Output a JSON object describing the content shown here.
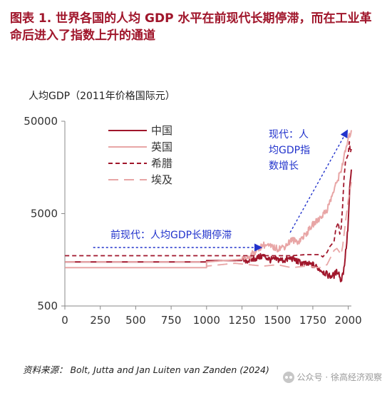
{
  "header": {
    "title": "图表 1.  世界各国的人均 GDP 水平在前现代长期停滞，而在工业革命后进入了指数上升的通道"
  },
  "footer": {
    "source": "资料来源： Bolt, Jutta and Jan Luiten van Zanden (2024)",
    "watermark": "公众号 · 徐高经济观察"
  },
  "chart_data": {
    "type": "line",
    "title": "",
    "ylabel": "人均GDP（2011年价格国际元）",
    "xlabel": "",
    "yscale": "log",
    "ylim": [
      500,
      50000
    ],
    "xlim": [
      0,
      2022
    ],
    "x_ticks": [
      "0",
      "250",
      "500",
      "750",
      "1000",
      "1250",
      "1500",
      "1750",
      "2000"
    ],
    "y_ticks": [
      "500",
      "5000",
      "50000"
    ],
    "grid": false,
    "legend_position": "top-left",
    "colors": {
      "china": "#a0162b",
      "uk": "#e8a6a6",
      "greece": "#a0162b",
      "egypt": "#e8a6a6",
      "annotation": "#2233cc"
    },
    "annotations": [
      {
        "text_lines": [
          "前现代：人均GDP长期停滞"
        ]
      },
      {
        "text_lines": [
          "现代：人",
          "均GDP指",
          "数增长"
        ]
      }
    ],
    "series": [
      {
        "name": "中国",
        "style": "solid",
        "color_key": "china",
        "x": [
          1,
          1000,
          1000,
          1200,
          1300,
          1400,
          1450,
          1500,
          1550,
          1600,
          1650,
          1700,
          1750,
          1800,
          1850,
          1870,
          1900,
          1913,
          1930,
          1950,
          1960,
          1965,
          1978,
          1990,
          2000,
          2010,
          2022
        ],
        "y": [
          1500,
          1500,
          1550,
          1550,
          1560,
          1750,
          1580,
          1600,
          1560,
          1650,
          1500,
          1420,
          1400,
          1250,
          1100,
          1050,
          1080,
          1150,
          1200,
          900,
          1200,
          1100,
          1700,
          2500,
          4000,
          9000,
          15000
        ]
      },
      {
        "name": "英国",
        "style": "solid",
        "color_key": "uk",
        "x": [
          1,
          1000,
          1000,
          1250,
          1300,
          1350,
          1400,
          1450,
          1500,
          1550,
          1600,
          1650,
          1700,
          1750,
          1800,
          1850,
          1900,
          1950,
          2000,
          2022
        ],
        "y": [
          1300,
          1300,
          1500,
          1600,
          1700,
          2000,
          2300,
          2200,
          2100,
          2200,
          2600,
          2500,
          3000,
          3800,
          4500,
          5500,
          9000,
          15000,
          32000,
          40000
        ]
      },
      {
        "name": "希腊",
        "style": "dash",
        "color_key": "greece",
        "x": [
          1,
          1000,
          1500,
          1600,
          1700,
          1800,
          1820,
          1850,
          1870,
          1900,
          1913,
          1930,
          1940,
          1950,
          1960,
          1970,
          1980,
          1990,
          2000,
          2008,
          2015,
          2022
        ],
        "y": [
          1750,
          1750,
          1750,
          1750,
          1800,
          1800,
          1700,
          1900,
          2200,
          2500,
          3500,
          4000,
          3000,
          3500,
          6000,
          12000,
          18000,
          20000,
          22000,
          30000,
          23000,
          25000
        ]
      },
      {
        "name": "埃及",
        "style": "longdash",
        "color_key": "egypt",
        "x": [
          1,
          1000,
          1000,
          1100,
          1200,
          1300,
          1400,
          1500,
          1600,
          1700,
          1800,
          1850,
          1900,
          1920,
          1950,
          1960,
          1980,
          2000,
          2022
        ],
        "y": [
          1500,
          1500,
          1350,
          1400,
          1450,
          1400,
          1350,
          1400,
          1300,
          1350,
          1300,
          1400,
          2000,
          2100,
          1800,
          2200,
          4000,
          7000,
          11000
        ]
      }
    ]
  }
}
